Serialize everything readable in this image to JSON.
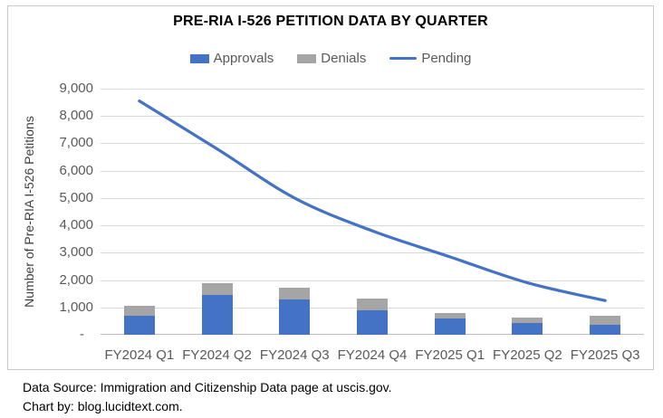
{
  "chart_data": {
    "type": "combo",
    "title": "PRE-RIA I-526 PETITION DATA BY QUARTER",
    "categories": [
      "FY2024 Q1",
      "FY2024 Q2",
      "FY2024 Q3",
      "FY2024 Q4",
      "FY2025 Q1",
      "FY2025 Q2",
      "FY2025 Q3"
    ],
    "series": [
      {
        "name": "Approvals",
        "type": "bar",
        "stacked": true,
        "color": "#4472C4",
        "values": [
          700,
          1450,
          1280,
          890,
          610,
          435,
          375
        ]
      },
      {
        "name": "Denials",
        "type": "bar",
        "stacked": true,
        "color": "#A5A5A5",
        "values": [
          375,
          430,
          450,
          440,
          195,
          205,
          325
        ]
      },
      {
        "name": "Pending",
        "type": "line",
        "smooth": true,
        "color": "#4472C4",
        "values": [
          8550,
          6800,
          5000,
          3800,
          2850,
          1900,
          1250
        ]
      }
    ],
    "xlabel": "",
    "ylabel": "Number of Pre-RIA I-526 Petitions",
    "ylim": [
      0,
      9000
    ],
    "ytick_interval": 1000,
    "ytick_labels": [
      "-",
      "1,000",
      "2,000",
      "3,000",
      "4,000",
      "5,000",
      "6,000",
      "7,000",
      "8,000",
      "9,000"
    ],
    "grid": true,
    "legend_position": "top"
  },
  "footer": {
    "line1": "Data Source: Immigration and Citizenship Data page at uscis.gov.",
    "line2": "Chart by: blog.lucidtext.com."
  },
  "colors": {
    "approvals": "#4472C4",
    "denials": "#A5A5A5",
    "pending_line": "#4472C4",
    "gridline": "#D9D9D9",
    "axis_line": "#BFBFBF",
    "chart_border": "#C9C9C9",
    "axis_text": "#595959",
    "title_text": "#000000"
  }
}
